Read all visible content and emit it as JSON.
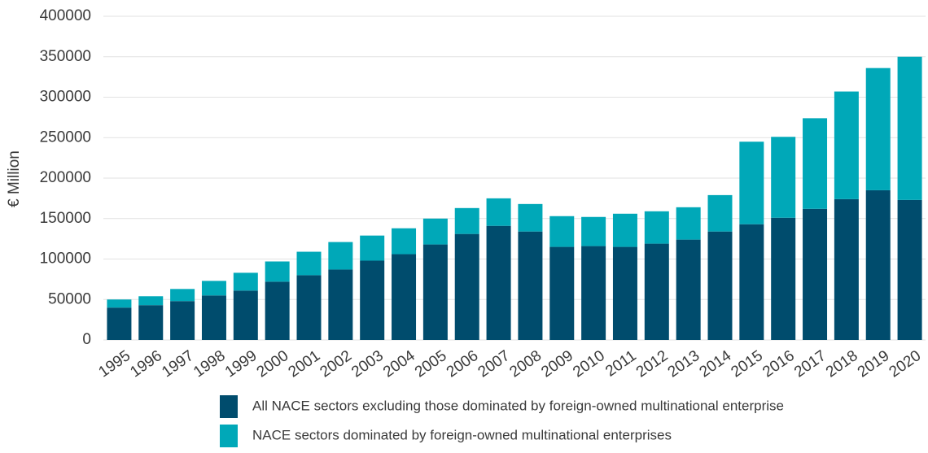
{
  "chart_data": {
    "type": "stacked_bar",
    "y_label": "€ Million",
    "categories": [
      "1995",
      "1996",
      "1997",
      "1998",
      "1999",
      "2000",
      "2001",
      "2002",
      "2003",
      "2004",
      "2005",
      "2006",
      "2007",
      "2008",
      "2009",
      "2010",
      "2011",
      "2012",
      "2013",
      "2014",
      "2015",
      "2016",
      "2017",
      "2018",
      "2019",
      "2020"
    ],
    "series": [
      {
        "name": "All NACE sectors excluding those dominated by foreign-owned multinational enterprise",
        "color": "#004c6d",
        "values": [
          40000,
          43000,
          48000,
          55000,
          61000,
          72000,
          80000,
          87000,
          98000,
          106000,
          118000,
          131000,
          141000,
          134000,
          115000,
          116000,
          115000,
          119000,
          124000,
          134000,
          143000,
          151000,
          162000,
          174000,
          185000,
          173000
        ]
      },
      {
        "name": "NACE sectors dominated by foreign-owned multinational enterprises",
        "color": "#00a8b8",
        "values": [
          10000,
          11000,
          15000,
          18000,
          22000,
          25000,
          29000,
          34000,
          31000,
          32000,
          32000,
          32000,
          34000,
          34000,
          38000,
          36000,
          41000,
          40000,
          40000,
          45000,
          102000,
          100000,
          112000,
          133000,
          151000,
          177000
        ]
      }
    ],
    "ylim": [
      0,
      400000
    ],
    "yticks": [
      0,
      50000,
      100000,
      150000,
      200000,
      250000,
      300000,
      350000,
      400000
    ],
    "grid": true
  }
}
